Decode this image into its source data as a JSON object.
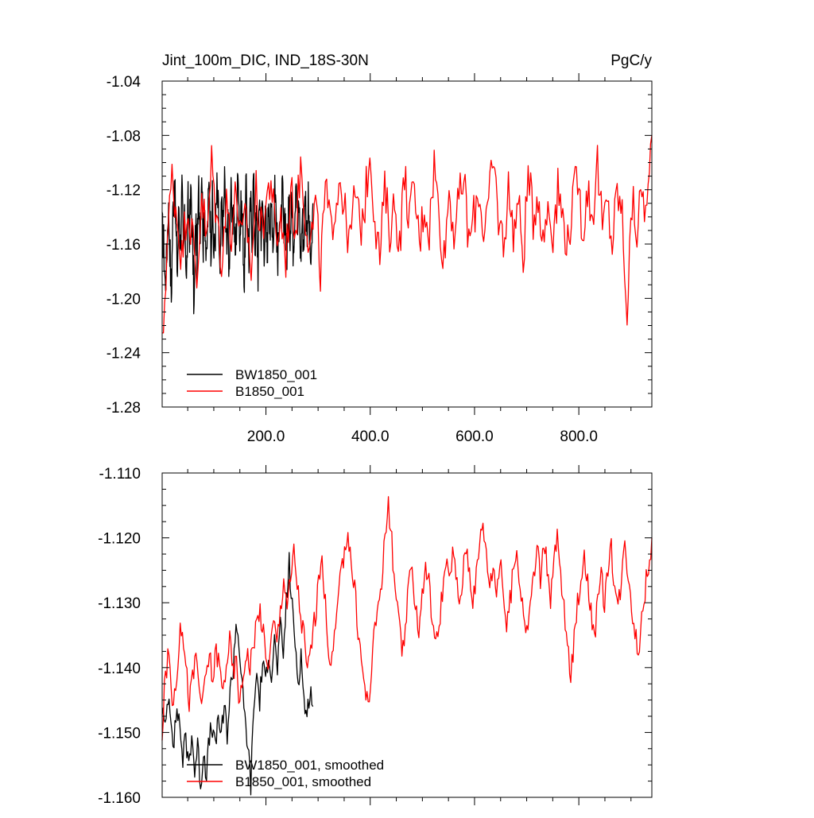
{
  "chart_data": [
    {
      "type": "line",
      "title_left": "Jint_100m_DIC, IND_18S-30N",
      "title_right": "PgC/y",
      "xlabel": "",
      "ylabel": "",
      "xlim": [
        1,
        940
      ],
      "ylim": [
        -1.28,
        -1.04
      ],
      "xticks": [
        200,
        400,
        600,
        800
      ],
      "xtick_labels": [
        "200.0",
        "400.0",
        "600.0",
        "800.0"
      ],
      "yticks": [
        -1.28,
        -1.24,
        -1.2,
        -1.16,
        -1.12,
        -1.08,
        -1.04
      ],
      "ytick_labels": [
        "-1.28",
        "-1.24",
        "-1.20",
        "-1.16",
        "-1.12",
        "-1.08",
        "-1.04"
      ],
      "grid": false,
      "legend_position": "bottom-left",
      "series": [
        {
          "name": "BW1850_001",
          "color": "#000000",
          "x_range": [
            1,
            290
          ],
          "values": [
            -1.15,
            -1.16,
            -1.19,
            -1.17,
            -1.13,
            -1.16,
            -1.2,
            -1.14,
            -1.11,
            -1.15,
            -1.18,
            -1.13,
            -1.16,
            -1.12,
            -1.17,
            -1.14,
            -1.19,
            -1.13,
            -1.15,
            -1.12,
            -1.16,
            -1.21,
            -1.14,
            -1.17,
            -1.12,
            -1.15,
            -1.1,
            -1.16,
            -1.13,
            -1.18,
            -1.14,
            -1.11,
            -1.16,
            -1.13,
            -1.17,
            -1.15,
            -1.12,
            -1.14,
            -1.19,
            -1.13,
            -1.15,
            -1.11,
            -1.16,
            -1.14,
            -1.18,
            -1.12,
            -1.15,
            -1.13,
            -1.17,
            -1.14,
            -1.1,
            -1.16,
            -1.13,
            -1.15,
            -1.19,
            -1.12,
            -1.14,
            -1.17,
            -1.13,
            -1.15,
            -1.11,
            -1.16,
            -1.14,
            -1.18,
            -1.12,
            -1.15,
            -1.13,
            -1.16,
            -1.14,
            -1.17,
            -1.12,
            -1.15,
            -1.13,
            -1.16,
            -1.11,
            -1.14,
            -1.18,
            -1.13,
            -1.15,
            -1.12,
            -1.16,
            -1.14,
            -1.17,
            -1.13,
            -1.15,
            -1.12,
            -1.16,
            -1.14,
            -1.1,
            -1.15,
            -1.13,
            -1.17,
            -1.14,
            -1.16,
            -1.12,
            -1.15,
            -1.13,
            -1.16,
            -1.18,
            -1.13
          ]
        },
        {
          "name": "B1850_001",
          "color": "#ff0000",
          "x_range": [
            1,
            940
          ],
          "values": [
            -1.24,
            -1.16,
            -1.11,
            -1.14,
            -1.17,
            -1.13,
            -1.15,
            -1.19,
            -1.12,
            -1.16,
            -1.1,
            -1.14,
            -1.17,
            -1.13,
            -1.15,
            -1.12,
            -1.16,
            -1.14,
            -1.18,
            -1.12,
            -1.15,
            -1.13,
            -1.11,
            -1.16,
            -1.14,
            -1.17,
            -1.12,
            -1.15,
            -1.1,
            -1.14,
            -1.16,
            -1.13,
            -1.18,
            -1.12,
            -1.15,
            -1.13,
            -1.11,
            -1.14,
            -1.16,
            -1.12,
            -1.15,
            -1.13,
            -1.09,
            -1.14,
            -1.17,
            -1.12,
            -1.15,
            -1.13,
            -1.16,
            -1.11,
            -1.14,
            -1.12,
            -1.16,
            -1.13,
            -1.15,
            -1.1,
            -1.14,
            -1.17,
            -1.12,
            -1.15,
            -1.13,
            -1.11,
            -1.16,
            -1.14,
            -1.12,
            -1.15,
            -1.13,
            -1.1,
            -1.14,
            -1.16,
            -1.12,
            -1.15,
            -1.13,
            -1.17,
            -1.11,
            -1.14,
            -1.12,
            -1.16,
            -1.13,
            -1.15,
            -1.12,
            -1.14,
            -1.16,
            -1.13,
            -1.11,
            -1.15,
            -1.12,
            -1.14,
            -1.1,
            -1.15,
            -1.13,
            -1.16,
            -1.12,
            -1.14,
            -1.21,
            -1.13,
            -1.15,
            -1.12,
            -1.14,
            -1.08
          ]
        }
      ]
    },
    {
      "type": "line",
      "title_left": "",
      "title_right": "",
      "xlabel": "",
      "ylabel": "",
      "xlim": [
        1,
        940
      ],
      "ylim": [
        -1.16,
        -1.11
      ],
      "xticks": [
        200,
        400,
        600,
        800
      ],
      "yticks": [
        -1.16,
        -1.15,
        -1.14,
        -1.13,
        -1.12,
        -1.11
      ],
      "ytick_labels": [
        "-1.160",
        "-1.150",
        "-1.140",
        "-1.130",
        "-1.120",
        "-1.110"
      ],
      "grid": false,
      "legend_position": "bottom-left",
      "series": [
        {
          "name": "BW1850_001, smoothed",
          "color": "#000000",
          "x_range": [
            1,
            290
          ],
          "values": [
            -1.146,
            -1.15,
            -1.144,
            -1.147,
            -1.152,
            -1.146,
            -1.149,
            -1.154,
            -1.151,
            -1.155,
            -1.15,
            -1.156,
            -1.152,
            -1.158,
            -1.153,
            -1.156,
            -1.151,
            -1.149,
            -1.153,
            -1.147,
            -1.151,
            -1.146,
            -1.15,
            -1.144,
            -1.14,
            -1.133,
            -1.136,
            -1.143,
            -1.148,
            -1.152,
            -1.158,
            -1.146,
            -1.141,
            -1.145,
            -1.139,
            -1.143,
            -1.137,
            -1.141,
            -1.136,
            -1.14,
            -1.134,
            -1.138,
            -1.13,
            -1.124,
            -1.131,
            -1.136,
            -1.142,
            -1.138,
            -1.145,
            -1.148,
            -1.143,
            -1.146
          ]
        },
        {
          "name": "B1850_001, smoothed",
          "color": "#ff0000",
          "x_range": [
            1,
            940
          ],
          "values": [
            -1.15,
            -1.141,
            -1.138,
            -1.145,
            -1.143,
            -1.136,
            -1.133,
            -1.14,
            -1.145,
            -1.142,
            -1.138,
            -1.143,
            -1.146,
            -1.141,
            -1.138,
            -1.142,
            -1.137,
            -1.14,
            -1.144,
            -1.139,
            -1.136,
            -1.141,
            -1.139,
            -1.146,
            -1.141,
            -1.137,
            -1.14,
            -1.136,
            -1.133,
            -1.131,
            -1.135,
            -1.14,
            -1.137,
            -1.133,
            -1.136,
            -1.131,
            -1.126,
            -1.13,
            -1.127,
            -1.122,
            -1.127,
            -1.132,
            -1.135,
            -1.141,
            -1.137,
            -1.133,
            -1.129,
            -1.123,
            -1.128,
            -1.135,
            -1.14,
            -1.136,
            -1.13,
            -1.126,
            -1.121,
            -1.119,
            -1.124,
            -1.128,
            -1.134,
            -1.139,
            -1.143,
            -1.146,
            -1.14,
            -1.134,
            -1.13,
            -1.126,
            -1.12,
            -1.115,
            -1.121,
            -1.128,
            -1.133,
            -1.138,
            -1.134,
            -1.128,
            -1.125,
            -1.13,
            -1.134,
            -1.129,
            -1.124,
            -1.127,
            -1.132,
            -1.137,
            -1.133,
            -1.128,
            -1.124,
            -1.127,
            -1.122,
            -1.126,
            -1.13,
            -1.126,
            -1.121,
            -1.125,
            -1.129,
            -1.126,
            -1.121,
            -1.117,
            -1.123,
            -1.127,
            -1.124,
            -1.128,
            -1.124,
            -1.128,
            -1.134,
            -1.13,
            -1.125,
            -1.122,
            -1.127,
            -1.131,
            -1.135,
            -1.13,
            -1.126,
            -1.122,
            -1.126,
            -1.12,
            -1.125,
            -1.129,
            -1.124,
            -1.12,
            -1.126,
            -1.131,
            -1.137,
            -1.142,
            -1.135,
            -1.13,
            -1.126,
            -1.122,
            -1.127,
            -1.131,
            -1.135,
            -1.13,
            -1.126,
            -1.13,
            -1.124,
            -1.122,
            -1.127,
            -1.131,
            -1.126,
            -1.121,
            -1.125,
            -1.13,
            -1.134,
            -1.138,
            -1.132,
            -1.128,
            -1.124,
            -1.12
          ]
        }
      ]
    }
  ]
}
